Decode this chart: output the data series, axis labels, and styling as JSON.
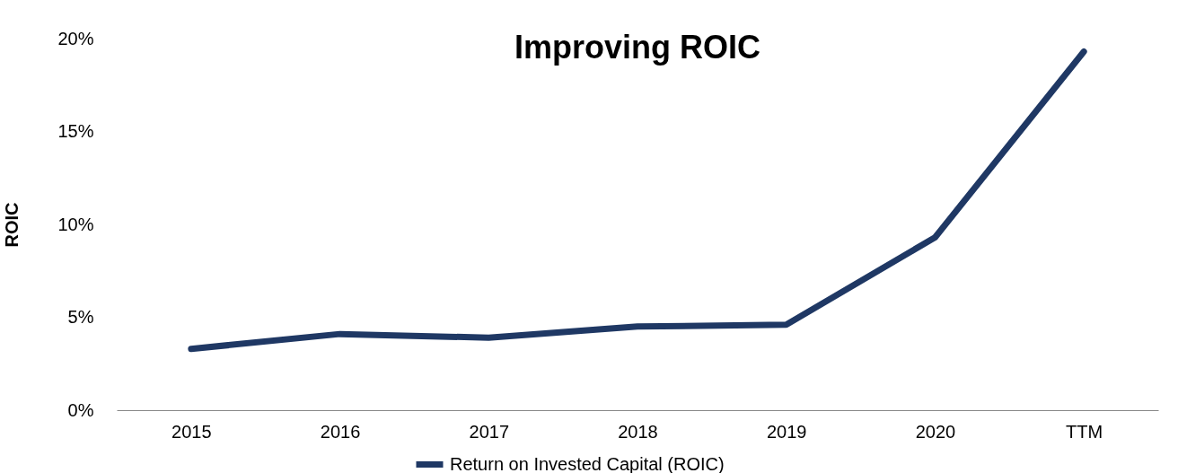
{
  "chart_data": {
    "type": "line",
    "title": "Improving ROIC",
    "ylabel": "ROIC",
    "categories": [
      "2015",
      "2016",
      "2017",
      "2018",
      "2019",
      "2020",
      "TTM"
    ],
    "series": [
      {
        "name": "Return on Invested Capital (ROIC)",
        "color": "#1f3864",
        "values": [
          3.3,
          4.1,
          3.9,
          4.5,
          4.6,
          9.3,
          19.3
        ]
      }
    ],
    "ylim": [
      0,
      20
    ],
    "yticks": [
      {
        "value": 0,
        "label": "0%"
      },
      {
        "value": 5,
        "label": "5%"
      },
      {
        "value": 10,
        "label": "10%"
      },
      {
        "value": 15,
        "label": "15%"
      },
      {
        "value": 20,
        "label": "20%"
      }
    ],
    "legend": "bottom"
  }
}
